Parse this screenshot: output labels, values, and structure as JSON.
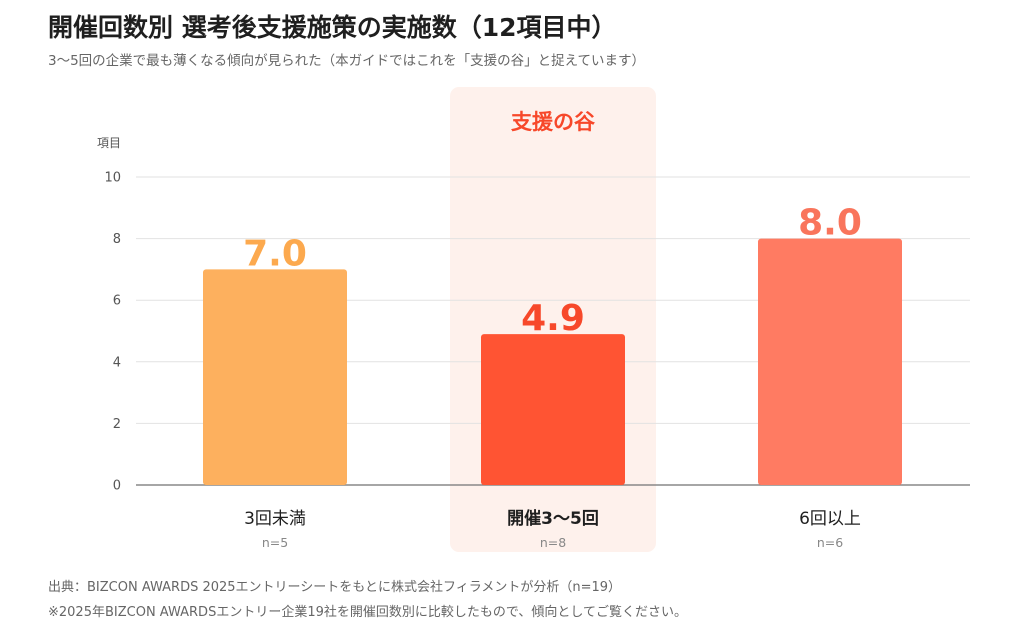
{
  "title": "開催回数別 選考後支援施策の実施数（12項目中）",
  "subtitle": "3〜5回の企業で最も薄くなる傾向が見られた（本ガイドではこれを「支援の谷」と捉えています）",
  "footnotes": [
    "出典：BIZCON AWARDS 2025エントリーシートをもとに株式会社フィラメントが分析（n=19）",
    "※2025年BIZCON AWARDSエントリー企業19社を開催回数別に比較したもので、傾向としてご覧ください。"
  ],
  "chart_data": {
    "type": "bar",
    "ylabel": "項目",
    "ylim": [
      0,
      10
    ],
    "yticks": [
      0,
      2,
      4,
      6,
      8,
      10
    ],
    "grid": true,
    "highlight_label": "支援の谷",
    "highlight_index": 1,
    "categories": [
      "3回未満",
      "開催3〜5回",
      "6回以上"
    ],
    "sample_sizes": [
      "n=5",
      "n=8",
      "n=6"
    ],
    "values": [
      7.0,
      4.9,
      8.0
    ],
    "value_labels": [
      "7.0",
      "4.9",
      "8.0"
    ],
    "colors": [
      "#FDB05E",
      "#FF5433",
      "#FF7B62"
    ],
    "label_colors": [
      "#FCA94E",
      "#F7482A",
      "#F9755C"
    ],
    "highlight_color": "#FEF1EC"
  }
}
